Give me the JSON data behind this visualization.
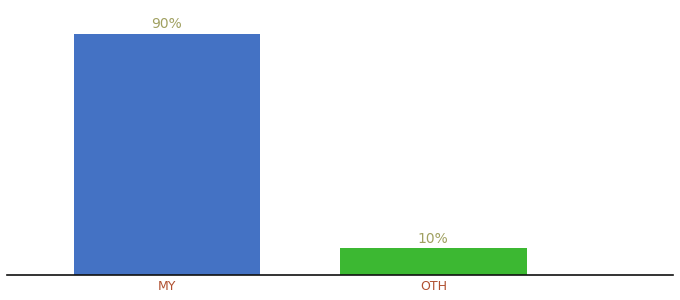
{
  "categories": [
    "MY",
    "OTH"
  ],
  "values": [
    90,
    10
  ],
  "bar_colors": [
    "#4472c4",
    "#3cb832"
  ],
  "value_labels": [
    "90%",
    "10%"
  ],
  "background_color": "#ffffff",
  "label_color": "#a0a060",
  "label_fontsize": 10,
  "tick_label_color": "#b05030",
  "tick_fontsize": 9,
  "ylim": [
    0,
    100
  ],
  "x_positions": [
    1,
    2
  ],
  "bar_width": 0.7,
  "xlim": [
    0.4,
    2.9
  ]
}
